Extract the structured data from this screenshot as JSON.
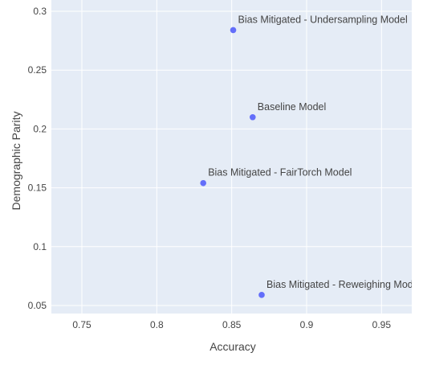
{
  "chart_data": {
    "type": "scatter",
    "title": "",
    "xlabel": "Accuracy",
    "ylabel": "Demographic Parity",
    "xlim": [
      0.73,
      0.97
    ],
    "ylim": [
      0.045,
      0.3
    ],
    "x_ticks": [
      0.75,
      0.8,
      0.85,
      0.9,
      0.95
    ],
    "y_ticks": [
      0.05,
      0.1,
      0.15,
      0.2,
      0.25,
      0.3
    ],
    "grid": true,
    "legend": false,
    "points": [
      {
        "label": "Baseline Model",
        "x": 0.864,
        "y": 0.21
      },
      {
        "label": "Bias Mitigated - Undersampling Model",
        "x": 0.851,
        "y": 0.284
      },
      {
        "label": "Bias Mitigated - FairTorch Model",
        "x": 0.831,
        "y": 0.154
      },
      {
        "label": "Bias Mitigated - Reweighing Model",
        "x": 0.87,
        "y": 0.059
      }
    ]
  },
  "colors": {
    "plot_background": "#e5ecf6",
    "grid": "#ffffff",
    "marker": "#636efa",
    "text": "#444444"
  }
}
